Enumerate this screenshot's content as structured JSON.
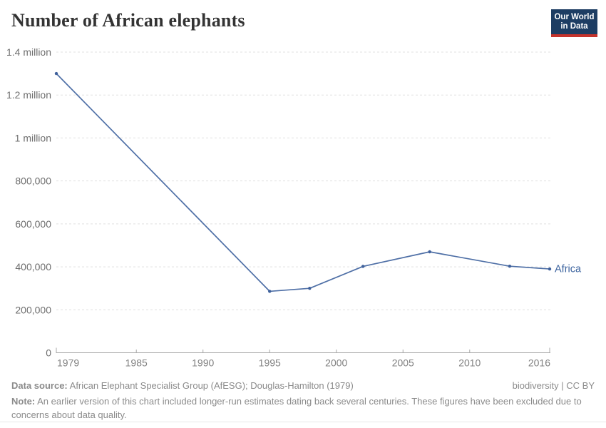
{
  "header": {
    "title": "Number of African elephants"
  },
  "logo": {
    "line1": "Our World",
    "line2": "in Data",
    "bg_color": "#1d3d63",
    "accent_color": "#c5332c"
  },
  "chart_data": {
    "type": "line",
    "title": "Number of African elephants",
    "xlabel": "",
    "ylabel": "",
    "xlim": [
      1979,
      2016
    ],
    "ylim": [
      0,
      1400000
    ],
    "grid": "horizontal-dashed",
    "legend_position": "end-of-line",
    "series": [
      {
        "name": "Africa",
        "color": "#4e6fa6",
        "marker_color": "#3f619c",
        "x": [
          1979,
          1995,
          1998,
          2002,
          2007,
          2013,
          2016
        ],
        "values": [
          1300000,
          286000,
          300000,
          402000,
          470000,
          403000,
          390000
        ]
      }
    ],
    "x_ticks": [
      {
        "v": 1979,
        "label": "1979"
      },
      {
        "v": 1985,
        "label": "1985"
      },
      {
        "v": 1990,
        "label": "1990"
      },
      {
        "v": 1995,
        "label": "1995"
      },
      {
        "v": 2000,
        "label": "2000"
      },
      {
        "v": 2005,
        "label": "2005"
      },
      {
        "v": 2010,
        "label": "2010"
      },
      {
        "v": 2016,
        "label": "2016"
      }
    ],
    "y_ticks": [
      {
        "v": 0,
        "label": "0"
      },
      {
        "v": 200000,
        "label": "200,000"
      },
      {
        "v": 400000,
        "label": "400,000"
      },
      {
        "v": 600000,
        "label": "600,000"
      },
      {
        "v": 800000,
        "label": "800,000"
      },
      {
        "v": 1000000,
        "label": "1 million"
      },
      {
        "v": 1200000,
        "label": "1.2 million"
      },
      {
        "v": 1400000,
        "label": "1.4 million"
      }
    ],
    "colors": {
      "gridline": "#e0e0e0",
      "axis": "#a8a8a8",
      "y_tick_label": "#6e6e6e",
      "x_tick_label": "#818181",
      "end_label": "#3d649f"
    }
  },
  "footer": {
    "source_label": "Data source:",
    "source_text": " African Elephant Specialist Group (AfESG); Douglas-Hamilton (1979)",
    "rights": "biodiversity | CC BY",
    "note_label": "Note:",
    "note_text": " An earlier version of this chart included longer-run estimates dating back several centuries. These figures have been excluded due to concerns about data quality."
  }
}
